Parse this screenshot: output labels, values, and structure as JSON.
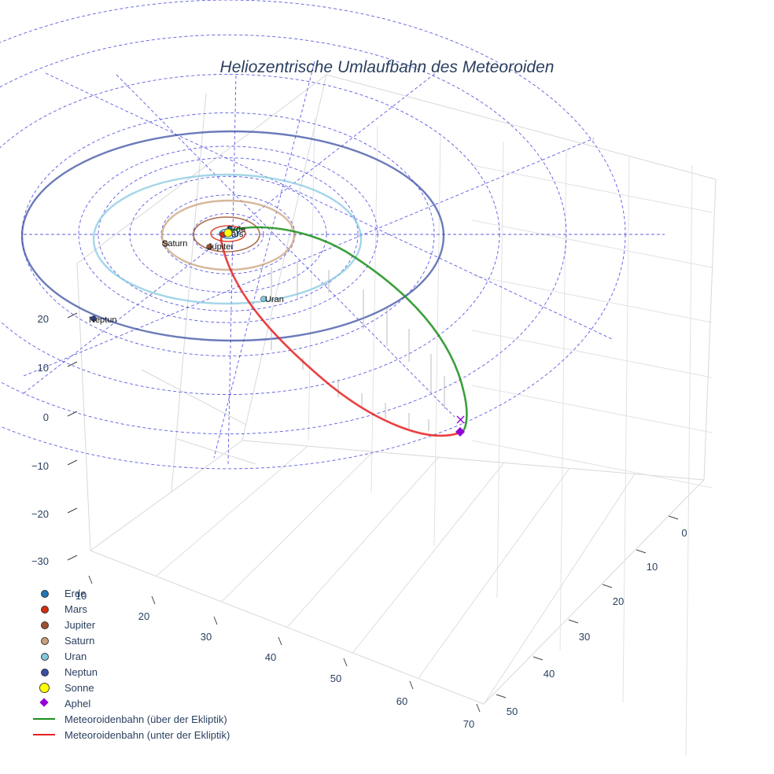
{
  "chart_data": {
    "type": "line",
    "title": "Heliozentrische Umlaufbahn des Meteoroiden",
    "projection": "3d",
    "axes": {
      "x": {
        "tick_labels": [
          "10",
          "20",
          "30",
          "40",
          "50",
          "60",
          "70"
        ]
      },
      "y": {
        "tick_labels": [
          "0",
          "10",
          "20",
          "30",
          "40",
          "50"
        ]
      },
      "z": {
        "tick_labels": [
          "20",
          "10",
          "0",
          "−10",
          "−20",
          "−30"
        ]
      }
    },
    "grid": true,
    "ecliptic_reference_grid": {
      "style": "dashed",
      "color": "#3f3fdd",
      "rings": 7
    },
    "planets": [
      {
        "name": "Erde",
        "color": "#1f77b4",
        "orbit_color": "#1f77b4"
      },
      {
        "name": "Mars",
        "color": "#d62d0e",
        "orbit_color": "#d62d0e"
      },
      {
        "name": "Jupiter",
        "color": "#a0522d",
        "orbit_color": "#a0522d"
      },
      {
        "name": "Saturn",
        "color": "#c8a07a",
        "orbit_color": "#c8a07a"
      },
      {
        "name": "Uran",
        "color": "#84c8e0",
        "orbit_color": "#84c8e0"
      },
      {
        "name": "Neptun",
        "color": "#3a4fa3",
        "orbit_color": "#3a4fa3"
      }
    ],
    "sun": {
      "name": "Sonne",
      "color": "#ffff00"
    },
    "aphel": {
      "name": "Aphel",
      "color": "#9400d3"
    },
    "series": [
      {
        "name": "Meteoroidenbahn (über der Ekliptik)",
        "color": "#1a8f1a"
      },
      {
        "name": "Meteoroidenbahn (unter der Ekliptik)",
        "color": "#e82020"
      }
    ],
    "legend": {
      "position": "bottom-left",
      "entries": [
        {
          "label": "Erde",
          "kind": "dot",
          "color": "#1f77b4"
        },
        {
          "label": "Mars",
          "kind": "dot",
          "color": "#d62d0e"
        },
        {
          "label": "Jupiter",
          "kind": "dot",
          "color": "#a0522d"
        },
        {
          "label": "Saturn",
          "kind": "dot",
          "color": "#c8a07a"
        },
        {
          "label": "Uran",
          "kind": "dot",
          "color": "#84c8e0"
        },
        {
          "label": "Neptun",
          "kind": "dot",
          "color": "#3a4fa3"
        },
        {
          "label": "Sonne",
          "kind": "big-dot",
          "color": "#ffff00"
        },
        {
          "label": "Aphel",
          "kind": "diamond",
          "color": "#9400d3"
        },
        {
          "label": "Meteoroidenbahn (über der Ekliptik)",
          "kind": "line",
          "color": "#1a8f1a"
        },
        {
          "label": "Meteoroidenbahn (unter der Ekliptik)",
          "kind": "line",
          "color": "#e82020"
        }
      ]
    }
  }
}
